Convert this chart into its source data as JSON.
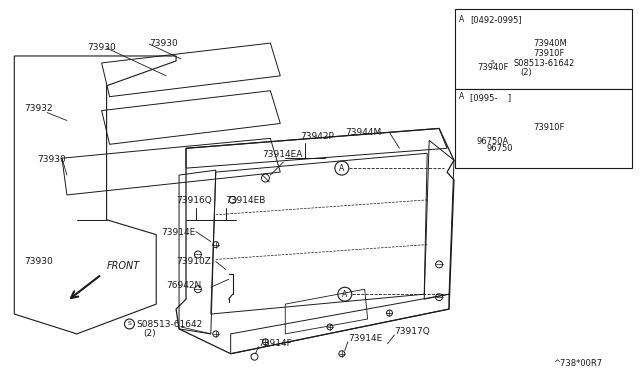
{
  "bg_color": "#ffffff",
  "line_color": "#1a1a1a",
  "diagram_note": "^738*00R7",
  "parts": {
    "73930": "73930",
    "73932": "73932",
    "73942P": "73942P",
    "73914EA": "73914EA",
    "73916Q": "73916Q",
    "73914EB": "73914EB",
    "73914E": "73914E",
    "73910Z": "73910Z",
    "76942N": "76942N",
    "S08513_bottom": "S08513-61642",
    "S08513_bottom2": "(2)",
    "73944M": "73944M",
    "73914F": "73914F",
    "73917Q": "73917Q",
    "73940M": "73940M",
    "73910F": "73910F",
    "73940F": "73940F",
    "S08513_inset": "S08513-61642",
    "S08513_inset2": "(2)",
    "96750A": "96750A",
    "96750": "96750",
    "FRONT": "FRONT",
    "inset1": "[0492-0995]",
    "inset2": "[0995-    ]"
  }
}
